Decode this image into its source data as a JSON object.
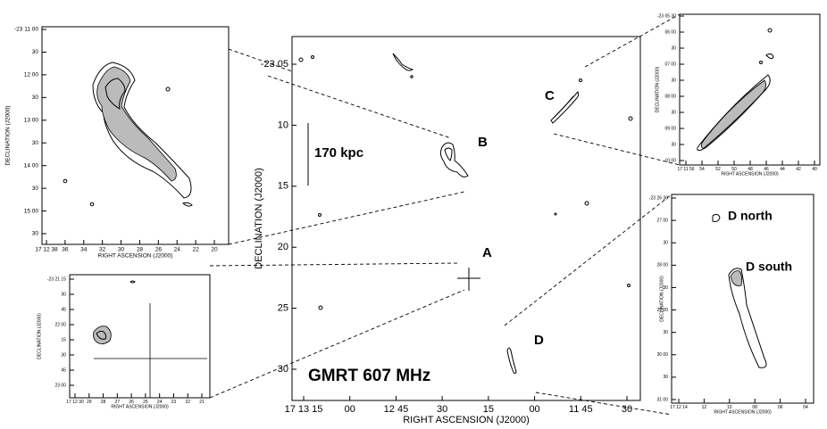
{
  "main": {
    "title": "GMRT 607 MHz",
    "scale_label": "170 kpc",
    "x_label": "RIGHT ASCENSION (J2000)",
    "y_label": "DECLINATION (J2000)",
    "y_ticks": [
      "-23 05",
      "10",
      "15",
      "20",
      "25",
      "30"
    ],
    "x_ticks": [
      "17 13 15",
      "00",
      "12 45",
      "30",
      "15",
      "00",
      "11 45",
      "30"
    ],
    "labels": [
      "A",
      "B",
      "C",
      "D"
    ]
  },
  "insets": [
    {
      "x_label": "RIGHT ASCENSION (J2000)",
      "y_label": "DECLINATION (J2000)",
      "y_ticks": [
        "-23 11 00",
        "30",
        "12 00",
        "30",
        "13 00",
        "30",
        "14 00",
        "30",
        "15 00",
        "30"
      ],
      "x_ticks": [
        "17 12 38",
        "36",
        "34",
        "32",
        "30",
        "28",
        "26",
        "24",
        "22",
        "20"
      ]
    },
    {
      "x_label": "RIGHT ASCENSION (J2000)",
      "y_label": "DECLINATION (J2000)",
      "y_ticks": [
        "-23 21 15",
        "30",
        "45",
        "22 00",
        "15",
        "30",
        "45",
        "23 00"
      ],
      "x_ticks": [
        "17 12 30",
        "29",
        "28",
        "27",
        "26",
        "25",
        "24",
        "23",
        "22",
        "21"
      ]
    },
    {
      "x_label": "RIGHT ASCENSION (J2000)",
      "y_label": "DECLINATION (J2000)",
      "y_ticks": [
        "-23 05 30",
        "06 00",
        "30",
        "07 00",
        "30",
        "08 00",
        "30",
        "09 00",
        "30",
        "10 00"
      ],
      "x_ticks": [
        "17 11 56",
        "54",
        "52",
        "50",
        "48",
        "46",
        "44",
        "42",
        "40"
      ]
    },
    {
      "x_label": "RIGHT ASCENSION (J2000)",
      "y_label": "DECLINATION (J2000)",
      "y_ticks": [
        "-23 26 30",
        "27 00",
        "30",
        "28 00",
        "30",
        "29 00",
        "30",
        "30 00",
        "30",
        "31 00"
      ],
      "x_ticks": [
        "17 12 14",
        "12",
        "10",
        "08",
        "06",
        "04"
      ],
      "labels": [
        "D north",
        "D south"
      ]
    }
  ]
}
